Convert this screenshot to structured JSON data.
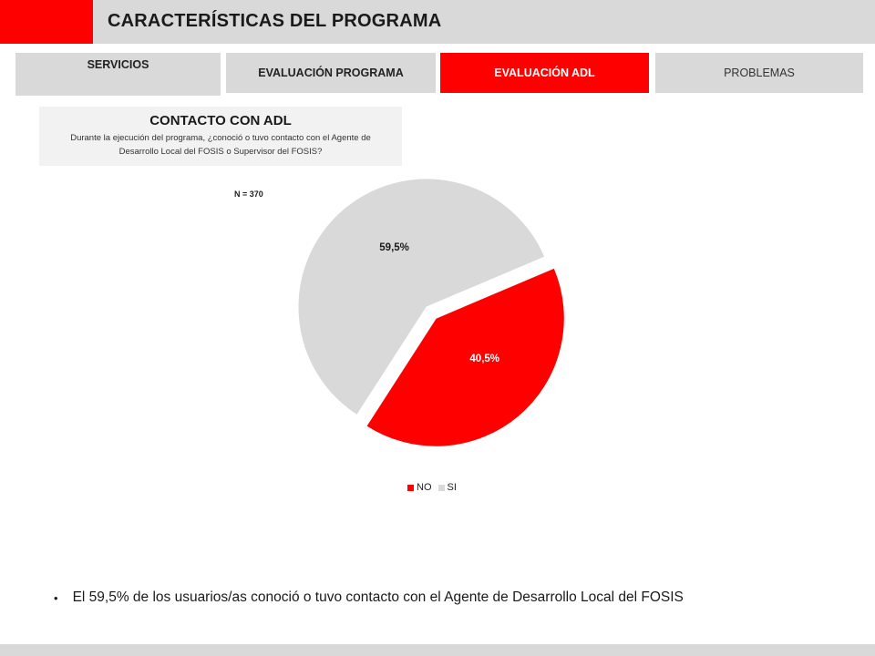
{
  "header": {
    "title": "CARACTERÍSTICAS DEL PROGRAMA",
    "accent_color": "#ff0000"
  },
  "tabs": [
    {
      "label": "SERVICIOS",
      "active": false
    },
    {
      "label": "EVALUACIÓN PROGRAMA",
      "active": false
    },
    {
      "label": "EVALUACIÓN ADL",
      "active": true
    },
    {
      "label": "PROBLEMAS",
      "active": false
    }
  ],
  "question": {
    "title": "CONTACTO CON ADL",
    "text": "Durante la ejecución del programa, ¿conoció o tuvo contacto con el Agente de Desarrollo Local del FOSIS o Supervisor del FOSIS?"
  },
  "chart_data": {
    "type": "pie",
    "note": "N = 370",
    "slices": [
      {
        "label": "NO",
        "value": 40.5,
        "display": "40,5%",
        "color": "#ff0000",
        "exploded": true
      },
      {
        "label": "SI",
        "value": 59.5,
        "display": "59,5%",
        "color": "#d9d9d9",
        "exploded": false
      }
    ],
    "legend": [
      "NO",
      "SI"
    ],
    "legend_position": "bottom"
  },
  "bullet": "El 59,5% de los usuarios/as conoció o tuvo contacto con el Agente de Desarrollo Local del FOSIS"
}
